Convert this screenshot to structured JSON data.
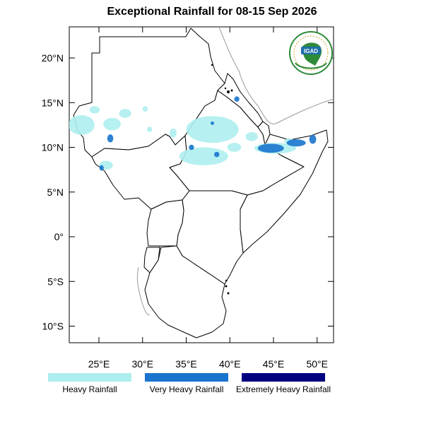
{
  "title": "Exceptional Rainfall for 08-15 Sep 2026",
  "map": {
    "lon_range": [
      21.5,
      51.5
    ],
    "lat_range": [
      -12,
      23.5
    ],
    "lat_ticks": [
      {
        "value": 20,
        "label": "20°N"
      },
      {
        "value": 15,
        "label": "15°N"
      },
      {
        "value": 10,
        "label": "10°N"
      },
      {
        "value": 5,
        "label": "5°N"
      },
      {
        "value": 0,
        "label": "0°"
      },
      {
        "value": -5,
        "label": "5°S"
      },
      {
        "value": -10,
        "label": "10°S"
      }
    ],
    "lon_ticks": [
      {
        "value": 25,
        "label": "25°E"
      },
      {
        "value": 30,
        "label": "30°E"
      },
      {
        "value": 35,
        "label": "35°E"
      },
      {
        "value": 40,
        "label": "40°E"
      },
      {
        "value": 45,
        "label": "45°E"
      },
      {
        "value": 50,
        "label": "50°E"
      }
    ],
    "colors": {
      "heavy": "#aeeeee",
      "very_heavy": "#1874cd",
      "extreme": "#000080",
      "border": "#000000",
      "coast_outline": "#999999"
    },
    "rainfall_areas": [
      {
        "class": "heavy",
        "lon": 23.0,
        "lat": 12.5,
        "rx": 1.5,
        "ry": 1.1
      },
      {
        "class": "heavy",
        "lon": 24.5,
        "lat": 14.2,
        "rx": 0.6,
        "ry": 0.4
      },
      {
        "class": "heavy",
        "lon": 26.5,
        "lat": 12.6,
        "rx": 1.0,
        "ry": 0.7
      },
      {
        "class": "heavy",
        "lon": 28.0,
        "lat": 13.8,
        "rx": 0.7,
        "ry": 0.5
      },
      {
        "class": "heavy",
        "lon": 30.3,
        "lat": 14.3,
        "rx": 0.3,
        "ry": 0.3
      },
      {
        "class": "heavy",
        "lon": 33.5,
        "lat": 11.6,
        "rx": 0.4,
        "ry": 0.5
      },
      {
        "class": "heavy",
        "lon": 30.8,
        "lat": 12.0,
        "rx": 0.3,
        "ry": 0.3
      },
      {
        "class": "heavy",
        "lon": 25.8,
        "lat": 8.0,
        "rx": 0.8,
        "ry": 0.5
      },
      {
        "class": "heavy",
        "lon": 38.0,
        "lat": 12.0,
        "rx": 3.0,
        "ry": 1.5
      },
      {
        "class": "heavy",
        "lon": 37.0,
        "lat": 9.0,
        "rx": 2.8,
        "ry": 1.0
      },
      {
        "class": "heavy",
        "lon": 40.5,
        "lat": 10.0,
        "rx": 0.8,
        "ry": 0.5
      },
      {
        "class": "heavy",
        "lon": 42.5,
        "lat": 11.2,
        "rx": 0.7,
        "ry": 0.5
      },
      {
        "class": "heavy",
        "lon": 45.2,
        "lat": 9.9,
        "rx": 2.4,
        "ry": 0.6
      },
      {
        "class": "heavy",
        "lon": 46.8,
        "lat": 10.7,
        "rx": 0.6,
        "ry": 0.3
      },
      {
        "class": "very_heavy",
        "lon": 26.3,
        "lat": 11.0,
        "rx": 0.35,
        "ry": 0.45
      },
      {
        "class": "very_heavy",
        "lon": 35.6,
        "lat": 10.0,
        "rx": 0.3,
        "ry": 0.3
      },
      {
        "class": "very_heavy",
        "lon": 38.5,
        "lat": 9.2,
        "rx": 0.3,
        "ry": 0.3
      },
      {
        "class": "very_heavy",
        "lon": 25.3,
        "lat": 7.7,
        "rx": 0.25,
        "ry": 0.3
      },
      {
        "class": "very_heavy",
        "lon": 38.0,
        "lat": 12.7,
        "rx": 0.2,
        "ry": 0.2
      },
      {
        "class": "very_heavy",
        "lon": 44.7,
        "lat": 9.9,
        "rx": 1.5,
        "ry": 0.5
      },
      {
        "class": "very_heavy",
        "lon": 47.6,
        "lat": 10.5,
        "rx": 1.1,
        "ry": 0.4
      },
      {
        "class": "very_heavy",
        "lon": 49.5,
        "lat": 10.9,
        "rx": 0.4,
        "ry": 0.5
      },
      {
        "class": "very_heavy",
        "lon": 40.8,
        "lat": 15.4,
        "rx": 0.3,
        "ry": 0.3
      }
    ]
  },
  "legend": [
    {
      "label": "Heavy Rainfall",
      "color": "#aeeeee"
    },
    {
      "label": "Very Heavy Rainfall",
      "color": "#1874cd"
    },
    {
      "label": "Extremely Heavy Rainfall",
      "color": "#000080"
    }
  ],
  "logo": {
    "text": "IGAD"
  }
}
